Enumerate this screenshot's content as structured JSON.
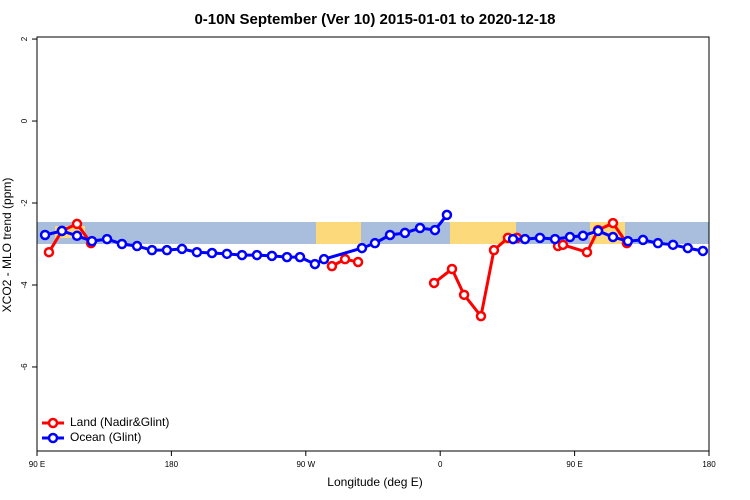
{
  "chart_data": {
    "type": "line",
    "title": "0-10N September (Ver 10)   2015-01-01 to 2020-12-18",
    "x_label": "Longitude (deg E)",
    "y_label": "XCO2 - MLO trend (ppm)",
    "xlim": [
      90,
      540
    ],
    "ylim": [
      -8.05,
      2.05
    ],
    "xticks": [
      {
        "value": 90,
        "label": "90 E"
      },
      180,
      {
        "value": 270,
        "label": "90 W"
      },
      {
        "value": 360,
        "label": "0"
      },
      {
        "value": 450,
        "label": "90 E"
      },
      180
    ],
    "yticks": [
      2,
      0,
      -2,
      -4,
      -6
    ],
    "legend": "bottom-left",
    "series": [
      {
        "name": "Land (Nadir&Glint)",
        "color": "#ff0000",
        "x": [
          98,
          106.7,
          116.8,
          126.2,
          null,
          287.5,
          296.3,
          305,
          null,
          355.9,
          367.9,
          376,
          387.3,
          396,
          405.4,
          411.4,
          null,
          438.9,
          442.2,
          458.3,
          465.7,
          475.7,
          485
        ],
        "values": [
          -3.2,
          -2.68,
          -2.51,
          -2.98,
          null,
          -3.54,
          -3.37,
          -3.44,
          null,
          -3.95,
          -3.61,
          -4.24,
          -4.76,
          -3.15,
          -2.85,
          -2.85,
          null,
          -3.05,
          -3.02,
          -3.2,
          -2.66,
          -2.49,
          -2.98
        ]
      },
      {
        "name": "Ocean (Glint)",
        "color": "#0000ff",
        "x": [
          95.4,
          106.7,
          116.8,
          126.8,
          136.9,
          146.9,
          157,
          167,
          177,
          187.1,
          197.1,
          207.2,
          217.2,
          227.3,
          237.3,
          247.3,
          257.4,
          266.1,
          276.1,
          282.2,
          307.6,
          316.3,
          326.4,
          336.4,
          346.5,
          356.5,
          364.5,
          null,
          408.8,
          416.8,
          426.8,
          436.9,
          446.9,
          455.6,
          465.7,
          475.7,
          485.7,
          495.8,
          505.8,
          515.9,
          525.8,
          535.9
        ],
        "values": [
          -2.78,
          -2.68,
          -2.8,
          -2.93,
          -2.88,
          -3.0,
          -3.05,
          -3.15,
          -3.15,
          -3.12,
          -3.2,
          -3.22,
          -3.24,
          -3.27,
          -3.27,
          -3.29,
          -3.32,
          -3.32,
          -3.49,
          -3.37,
          -3.1,
          -2.98,
          -2.78,
          -2.73,
          -2.61,
          -2.66,
          -2.29,
          null,
          -2.88,
          -2.88,
          -2.85,
          -2.88,
          -2.83,
          -2.8,
          -2.68,
          -2.83,
          -2.93,
          -2.9,
          -2.98,
          -3.02,
          -3.1,
          -3.17
        ]
      }
    ]
  }
}
